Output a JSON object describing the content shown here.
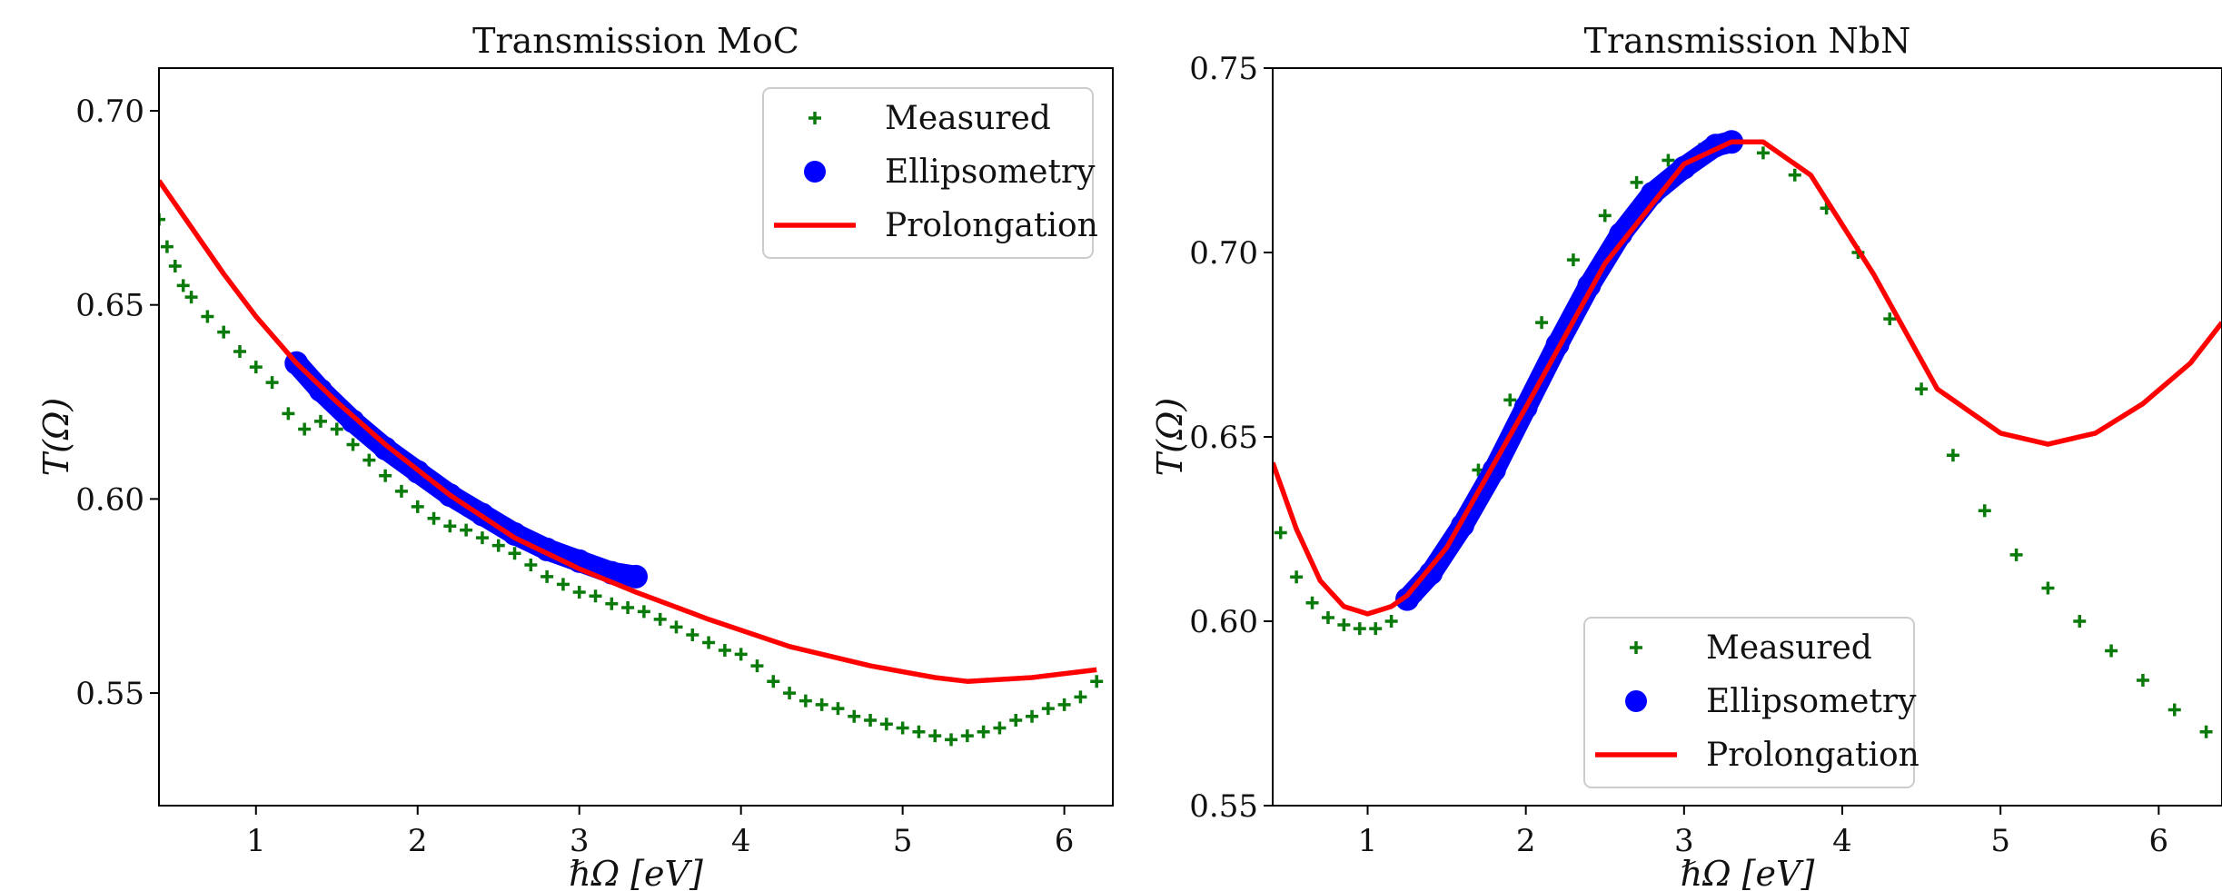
{
  "chart_data": [
    {
      "type": "scatter",
      "title": "Transmission MoC",
      "xlabel": "ℏΩ   [eV]",
      "ylabel": "T(Ω)",
      "xlim": [
        0.4,
        6.3
      ],
      "ylim": [
        0.521,
        0.711
      ],
      "xticks": [
        1,
        2,
        3,
        4,
        5,
        6
      ],
      "xtick_labels": [
        "1",
        "2",
        "3",
        "4",
        "5",
        "6"
      ],
      "yticks": [
        0.55,
        0.6,
        0.65,
        0.7
      ],
      "ytick_labels": [
        "0.55",
        "0.60",
        "0.65",
        "0.70"
      ],
      "grid": false,
      "legend": {
        "position": "top-right",
        "entries": [
          "Measured",
          "Ellipsometry",
          "Prolongation"
        ]
      },
      "series": [
        {
          "name": "Measured",
          "style": "scatter-plus",
          "color": "#0a7a0a",
          "x": [
            0.4,
            0.45,
            0.5,
            0.55,
            0.6,
            0.7,
            0.8,
            0.9,
            1.0,
            1.1,
            1.2,
            1.3,
            1.4,
            1.5,
            1.6,
            1.7,
            1.8,
            1.9,
            2.0,
            2.1,
            2.2,
            2.3,
            2.4,
            2.5,
            2.6,
            2.7,
            2.8,
            2.9,
            3.0,
            3.1,
            3.2,
            3.3,
            3.4,
            3.5,
            3.6,
            3.7,
            3.8,
            3.9,
            4.0,
            4.1,
            4.2,
            4.3,
            4.4,
            4.5,
            4.6,
            4.7,
            4.8,
            4.9,
            5.0,
            5.1,
            5.2,
            5.3,
            5.4,
            5.5,
            5.6,
            5.7,
            5.8,
            5.9,
            6.0,
            6.1,
            6.2
          ],
          "y": [
            0.672,
            0.665,
            0.66,
            0.655,
            0.652,
            0.647,
            0.643,
            0.638,
            0.634,
            0.63,
            0.622,
            0.618,
            0.62,
            0.618,
            0.614,
            0.61,
            0.606,
            0.602,
            0.598,
            0.595,
            0.593,
            0.592,
            0.59,
            0.588,
            0.586,
            0.583,
            0.58,
            0.578,
            0.576,
            0.575,
            0.573,
            0.572,
            0.571,
            0.569,
            0.567,
            0.565,
            0.563,
            0.561,
            0.56,
            0.557,
            0.553,
            0.55,
            0.548,
            0.547,
            0.546,
            0.544,
            0.543,
            0.542,
            0.541,
            0.54,
            0.539,
            0.538,
            0.539,
            0.54,
            0.541,
            0.543,
            0.544,
            0.546,
            0.547,
            0.549,
            0.553
          ]
        },
        {
          "name": "Ellipsometry",
          "style": "scatter-thick",
          "color": "#0000ff",
          "x": [
            1.25,
            1.4,
            1.6,
            1.8,
            2.0,
            2.2,
            2.4,
            2.6,
            2.8,
            3.0,
            3.2,
            3.35
          ],
          "y": [
            0.635,
            0.628,
            0.62,
            0.613,
            0.607,
            0.601,
            0.596,
            0.591,
            0.587,
            0.584,
            0.581,
            0.58
          ]
        },
        {
          "name": "Prolongation",
          "style": "line",
          "color": "#ff0000",
          "x": [
            0.4,
            0.6,
            0.8,
            1.0,
            1.25,
            1.5,
            1.8,
            2.2,
            2.6,
            3.0,
            3.35,
            3.8,
            4.3,
            4.8,
            5.2,
            5.4,
            5.8,
            6.2
          ],
          "y": [
            0.682,
            0.67,
            0.658,
            0.647,
            0.635,
            0.625,
            0.614,
            0.601,
            0.59,
            0.582,
            0.576,
            0.569,
            0.562,
            0.557,
            0.554,
            0.553,
            0.554,
            0.556
          ]
        }
      ]
    },
    {
      "type": "scatter",
      "title": "Transmission NbN",
      "xlabel": "ℏΩ   [eV]",
      "ylabel": "T(Ω)",
      "xlim": [
        0.4,
        6.4
      ],
      "ylim": [
        0.55,
        0.75
      ],
      "xticks": [
        1,
        2,
        3,
        4,
        5,
        6
      ],
      "xtick_labels": [
        "1",
        "2",
        "3",
        "4",
        "5",
        "6"
      ],
      "yticks": [
        0.55,
        0.6,
        0.65,
        0.7,
        0.75
      ],
      "ytick_labels": [
        "0.55",
        "0.60",
        "0.65",
        "0.70",
        "0.75"
      ],
      "grid": false,
      "legend": {
        "position": "lower-center",
        "entries": [
          "Measured",
          "Ellipsometry",
          "Prolongation"
        ]
      },
      "series": [
        {
          "name": "Measured",
          "style": "scatter-plus",
          "color": "#0a7a0a",
          "x": [
            0.45,
            0.55,
            0.65,
            0.75,
            0.85,
            0.95,
            1.05,
            1.15,
            1.3,
            1.5,
            1.7,
            1.9,
            2.1,
            2.3,
            2.5,
            2.7,
            2.9,
            3.1,
            3.3,
            3.5,
            3.7,
            3.9,
            4.1,
            4.3,
            4.5,
            4.7,
            4.9,
            5.1,
            5.3,
            5.5,
            5.7,
            5.9,
            6.1,
            6.3
          ],
          "y": [
            0.624,
            0.612,
            0.605,
            0.601,
            0.599,
            0.598,
            0.598,
            0.6,
            0.606,
            0.62,
            0.641,
            0.66,
            0.681,
            0.698,
            0.71,
            0.719,
            0.725,
            0.728,
            0.73,
            0.727,
            0.721,
            0.712,
            0.7,
            0.682,
            0.663,
            0.645,
            0.63,
            0.618,
            0.609,
            0.6,
            0.592,
            0.584,
            0.576,
            0.57
          ]
        },
        {
          "name": "Ellipsometry",
          "style": "scatter-thick",
          "color": "#0000ff",
          "x": [
            1.25,
            1.4,
            1.6,
            1.8,
            2.0,
            2.2,
            2.4,
            2.6,
            2.8,
            3.0,
            3.2,
            3.3
          ],
          "y": [
            0.606,
            0.613,
            0.626,
            0.641,
            0.658,
            0.675,
            0.691,
            0.705,
            0.716,
            0.723,
            0.729,
            0.73
          ]
        },
        {
          "name": "Prolongation",
          "style": "line",
          "color": "#ff0000",
          "x": [
            0.4,
            0.55,
            0.7,
            0.85,
            1.0,
            1.15,
            1.25,
            1.5,
            2.0,
            2.5,
            3.0,
            3.3,
            3.5,
            3.8,
            4.2,
            4.6,
            5.0,
            5.3,
            5.6,
            5.9,
            6.2,
            6.4
          ],
          "y": [
            0.643,
            0.625,
            0.611,
            0.604,
            0.602,
            0.604,
            0.607,
            0.62,
            0.658,
            0.697,
            0.724,
            0.73,
            0.73,
            0.721,
            0.694,
            0.663,
            0.651,
            0.648,
            0.651,
            0.659,
            0.67,
            0.681
          ]
        }
      ]
    }
  ]
}
